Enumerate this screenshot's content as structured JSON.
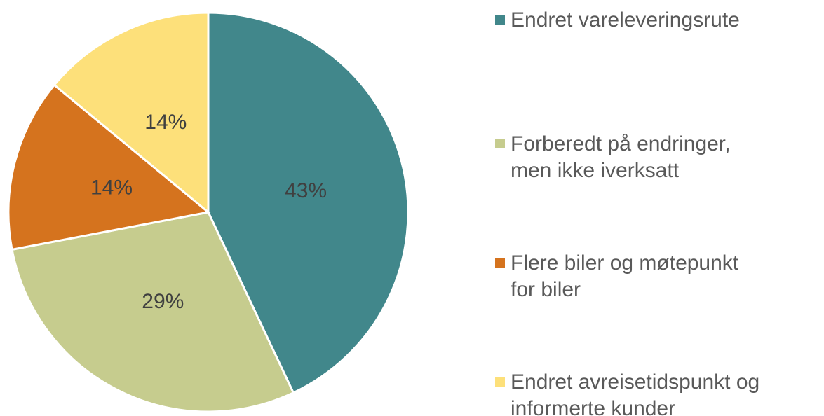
{
  "chart_data": {
    "type": "pie",
    "categories": [
      "Endret vareleveringsrute",
      "Forberedt på endringer,\nmen ikke iverksatt",
      "Flere biler og møtepunkt\nfor biler",
      "Endret avreisetidspunkt og\ninformerte kunder"
    ],
    "values": [
      43,
      29,
      14,
      14
    ],
    "value_labels": [
      "43%",
      "29%",
      "14%",
      "14%"
    ],
    "colors": [
      "#41878b",
      "#c6cc8e",
      "#d5731e",
      "#fde07a"
    ],
    "legend": "right"
  }
}
